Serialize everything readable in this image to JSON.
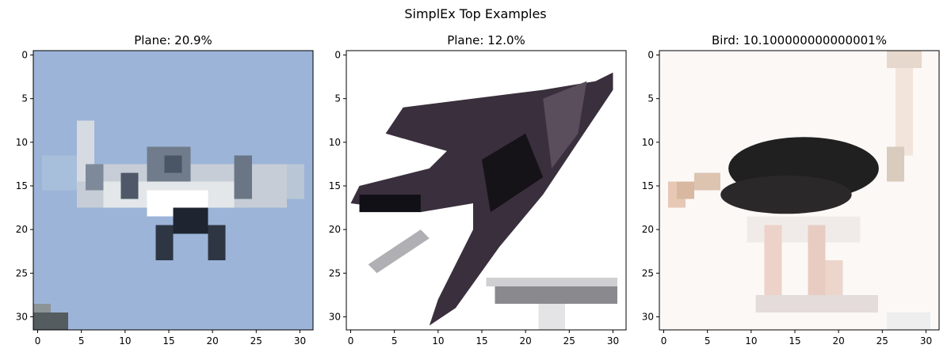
{
  "figure_title": "SimplEx Top Examples",
  "chart_data": [
    {
      "type": "heatmap",
      "title": "Plane: 20.9%",
      "xlim": [
        -0.5,
        31.5
      ],
      "ylim": [
        31.5,
        -0.5
      ],
      "xticks": [
        0,
        5,
        10,
        15,
        20,
        25,
        30
      ],
      "yticks": [
        0,
        5,
        10,
        15,
        20,
        25,
        30
      ],
      "image": "32x32 pixel photo of a small grey-white aircraft against a pale blue sky",
      "background_color": "#9cb4d8"
    },
    {
      "type": "heatmap",
      "title": "Plane: 12.0%",
      "xlim": [
        -0.5,
        31.5
      ],
      "ylim": [
        31.5,
        -0.5
      ],
      "xticks": [
        0,
        5,
        10,
        15,
        20,
        25,
        30
      ],
      "yticks": [
        0,
        5,
        10,
        15,
        20,
        25,
        30
      ],
      "image": "32x32 pixel image of a dark swept-wing jet silhouette on white, with a grey bar at the bottom right",
      "background_color": "#ffffff"
    },
    {
      "type": "heatmap",
      "title": "Bird: 10.100000000000001%",
      "xlim": [
        -0.5,
        31.5
      ],
      "ylim": [
        31.5,
        -0.5
      ],
      "xticks": [
        0,
        5,
        10,
        15,
        20,
        25,
        30
      ],
      "yticks": [
        0,
        5,
        10,
        15,
        20,
        25,
        30
      ],
      "image": "32x32 pixel image of an ostrich with a black body and pale legs on white",
      "background_color": "#fbf8f6"
    }
  ]
}
